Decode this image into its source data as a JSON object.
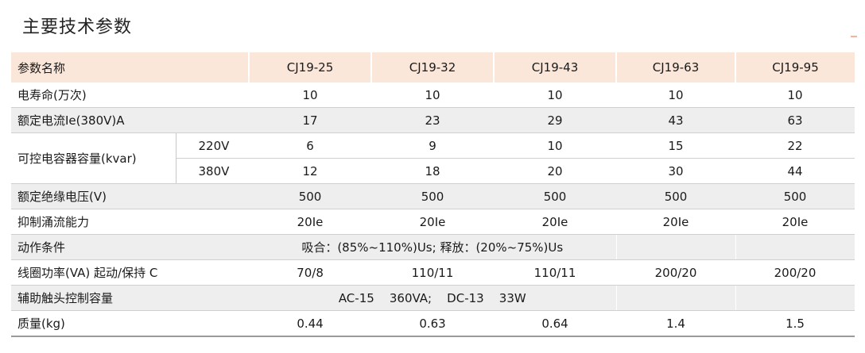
{
  "title": "主要技术参数",
  "accent_color": "#fbe6da",
  "stripe_color": "#eeeeee",
  "header": {
    "name": "参数名称",
    "models": [
      "CJ19-25",
      "CJ19-32",
      "CJ19-43",
      "CJ19-63",
      "CJ19-95"
    ]
  },
  "rows": {
    "life": {
      "label": "电寿命(万次)",
      "values": [
        "10",
        "10",
        "10",
        "10",
        "10"
      ]
    },
    "current": {
      "label": "额定电流Ie(380V)A",
      "values": [
        "17",
        "23",
        "29",
        "43",
        "63"
      ]
    },
    "capacity": {
      "label": "可控电容器容量(kvar)",
      "v220": {
        "label": "220V",
        "values": [
          "6",
          "9",
          "10",
          "15",
          "22"
        ]
      },
      "v380": {
        "label": "380V",
        "values": [
          "12",
          "18",
          "20",
          "30",
          "44"
        ]
      }
    },
    "insulation": {
      "label": "额定绝缘电压(V)",
      "values": [
        "500",
        "500",
        "500",
        "500",
        "500"
      ]
    },
    "inrush": {
      "label": "抑制涌流能力",
      "values": [
        "20Ie",
        "20Ie",
        "20Ie",
        "20Ie",
        "20Ie"
      ]
    },
    "action": {
      "label": "动作条件",
      "value": "吸合：(85%~110%)Us; 释放：(20%~75%)Us"
    },
    "coil": {
      "label": "线圈功率(VA) 起动/保持  C",
      "values": [
        "70/8",
        "110/11",
        "110/11",
        "200/20",
        "200/20"
      ]
    },
    "aux": {
      "label": "辅助触头控制容量",
      "value": "AC-15    360VA;    DC-13    33W"
    },
    "mass": {
      "label": "质量(kg)",
      "values": [
        "0.44",
        "0.63",
        "0.64",
        "1.4",
        "1.5"
      ]
    }
  }
}
